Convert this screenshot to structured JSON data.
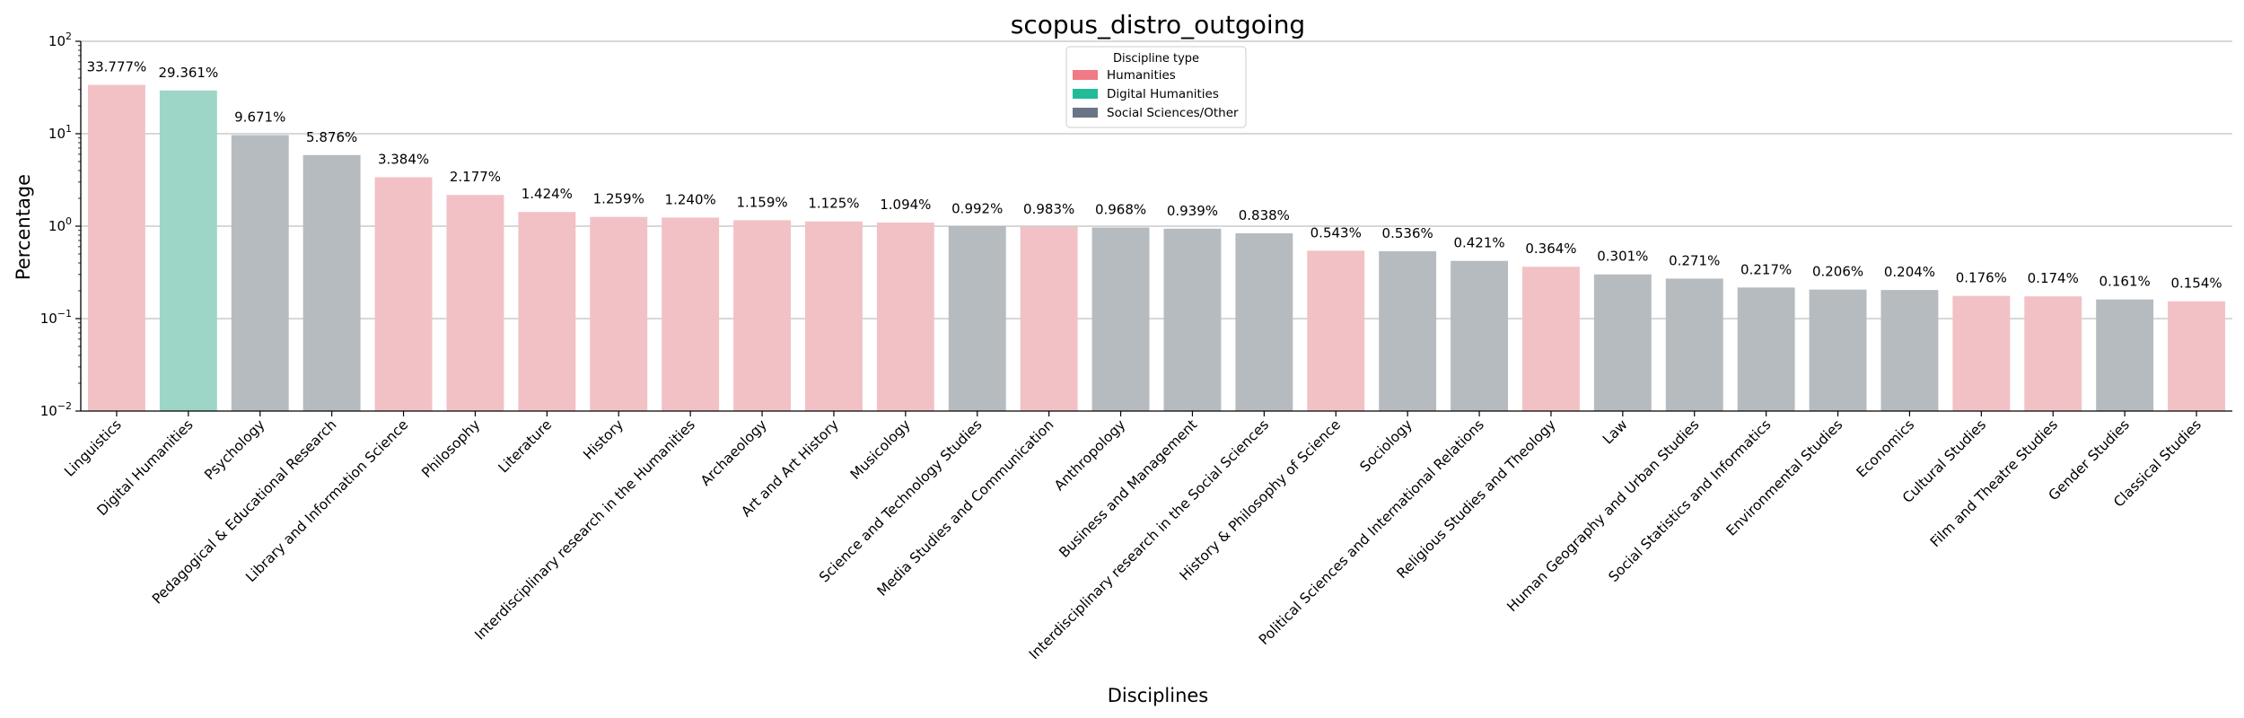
{
  "chart_data": {
    "type": "bar",
    "title": "scopus_distro_outgoing",
    "xlabel": "Disciplines",
    "ylabel": "Percentage",
    "yscale": "log",
    "ylim": [
      0.01,
      100
    ],
    "yticks": [
      {
        "value": 0.01,
        "base": "10",
        "exp": "−2"
      },
      {
        "value": 0.1,
        "base": "10",
        "exp": "−1"
      },
      {
        "value": 1,
        "base": "10",
        "exp": "0"
      },
      {
        "value": 10,
        "base": "10",
        "exp": "1"
      },
      {
        "value": 100,
        "base": "10",
        "exp": "2"
      }
    ],
    "grid": "horizontal at major ticks",
    "legend": {
      "title": "Discipline type",
      "placement": "top-center",
      "entries": [
        {
          "name": "Humanities",
          "color": "#f07a85"
        },
        {
          "name": "Digital Humanities",
          "color": "#22bb99"
        },
        {
          "name": "Social Sciences/Other",
          "color": "#6a7688"
        }
      ]
    },
    "bar_colors": {
      "Humanities": "#f2c1c6",
      "Digital Humanities": "#9dd6c6",
      "Social Sciences/Other": "#b6bbc0"
    },
    "categories": [
      "Linguistics",
      "Digital Humanities",
      "Psychology",
      "Pedagogical & Educational Research",
      "Library and Information Science",
      "Philosophy",
      "Literature",
      "History",
      "Interdisciplinary research in the Humanities",
      "Archaeology",
      "Art and Art History",
      "Musicology",
      "Science and Technology Studies",
      "Media Studies and Communication",
      "Anthropology",
      "Business and Management",
      "Interdisciplinary research in the Social Sciences",
      "History & Philosophy of Science",
      "Sociology",
      "Political Sciences and International Relations",
      "Religious Studies and Theology",
      "Law",
      "Human Geography and Urban Studies",
      "Social Statistics and Informatics",
      "Environmental Studies",
      "Economics",
      "Cultural Studies",
      "Film and Theatre Studies",
      "Gender Studies",
      "Classical Studies"
    ],
    "values": [
      33.777,
      29.361,
      9.671,
      5.876,
      3.384,
      2.177,
      1.424,
      1.259,
      1.24,
      1.159,
      1.125,
      1.094,
      0.992,
      0.983,
      0.968,
      0.939,
      0.838,
      0.543,
      0.536,
      0.421,
      0.364,
      0.301,
      0.271,
      0.217,
      0.206,
      0.204,
      0.176,
      0.174,
      0.161,
      0.154
    ],
    "value_labels": [
      "33.777%",
      "29.361%",
      "9.671%",
      "5.876%",
      "3.384%",
      "2.177%",
      "1.424%",
      "1.259%",
      "1.240%",
      "1.159%",
      "1.125%",
      "1.094%",
      "0.992%",
      "0.983%",
      "0.968%",
      "0.939%",
      "0.838%",
      "0.543%",
      "0.536%",
      "0.421%",
      "0.364%",
      "0.301%",
      "0.271%",
      "0.217%",
      "0.206%",
      "0.204%",
      "0.176%",
      "0.174%",
      "0.161%",
      "0.154%"
    ],
    "discipline_types": [
      "Humanities",
      "Digital Humanities",
      "Social Sciences/Other",
      "Social Sciences/Other",
      "Humanities",
      "Humanities",
      "Humanities",
      "Humanities",
      "Humanities",
      "Humanities",
      "Humanities",
      "Humanities",
      "Social Sciences/Other",
      "Humanities",
      "Social Sciences/Other",
      "Social Sciences/Other",
      "Social Sciences/Other",
      "Humanities",
      "Social Sciences/Other",
      "Social Sciences/Other",
      "Humanities",
      "Social Sciences/Other",
      "Social Sciences/Other",
      "Social Sciences/Other",
      "Social Sciences/Other",
      "Social Sciences/Other",
      "Humanities",
      "Humanities",
      "Social Sciences/Other",
      "Humanities"
    ]
  }
}
